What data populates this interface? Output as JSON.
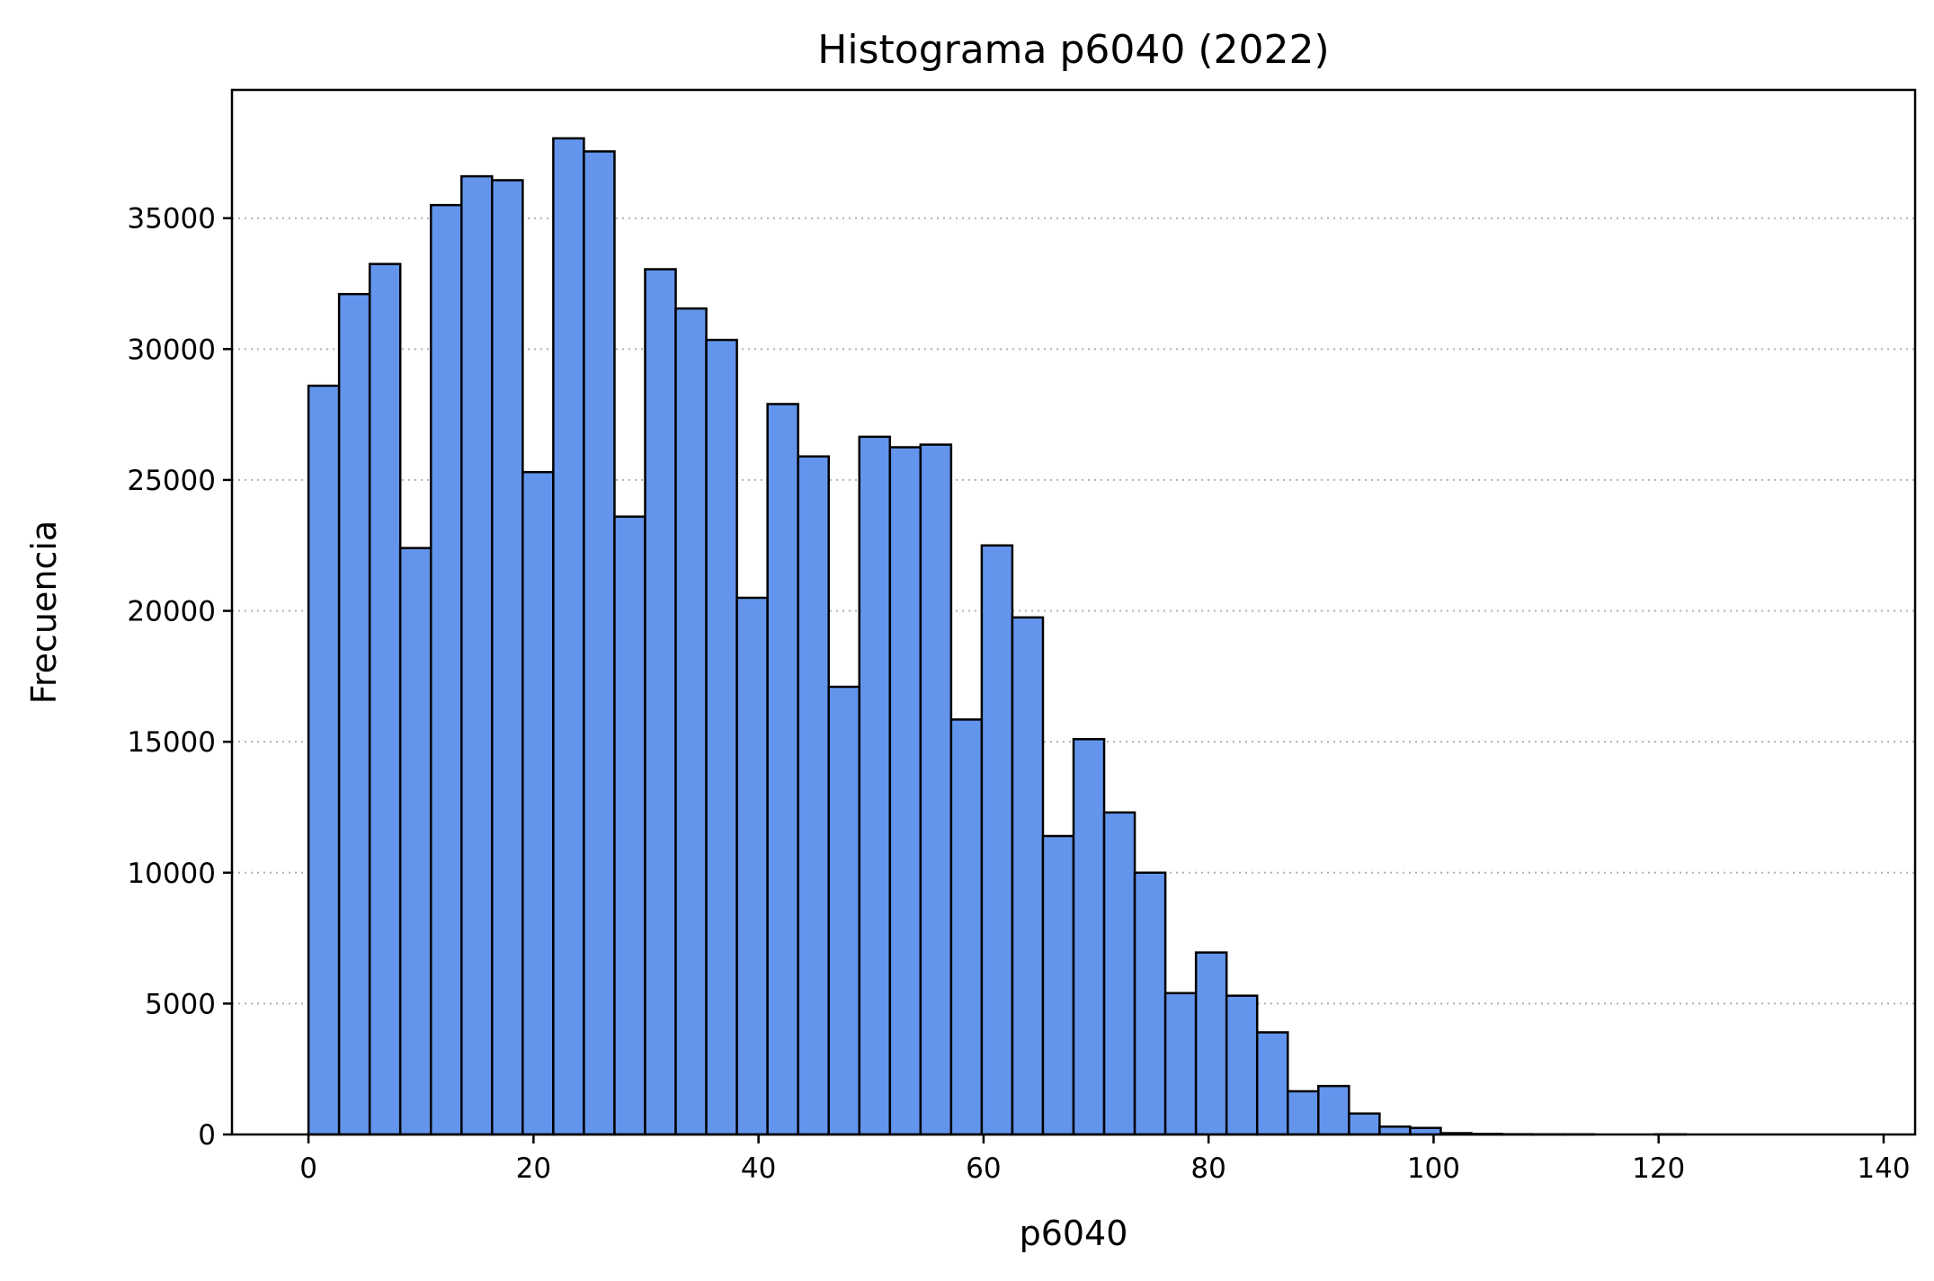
{
  "chart_data": {
    "type": "bar",
    "subtype": "histogram",
    "title": "Histograma p6040 (2022)",
    "xlabel": "p6040",
    "ylabel": "Frecuencia",
    "xlim": [
      -6.8,
      142.8
    ],
    "ylim": [
      0,
      39900
    ],
    "xticks": [
      0,
      20,
      40,
      60,
      80,
      100,
      120,
      140
    ],
    "yticks": [
      0,
      5000,
      10000,
      15000,
      20000,
      25000,
      30000,
      35000
    ],
    "grid": {
      "axis": "y",
      "style": "dotted"
    },
    "bar_color": "#6495ED",
    "edge_color": "#000000",
    "bins": {
      "start": 0,
      "width": 2.72,
      "counts": [
        28600,
        32100,
        33250,
        22400,
        35500,
        36600,
        36450,
        25300,
        38050,
        37550,
        23600,
        33050,
        31550,
        30350,
        20500,
        27900,
        25900,
        17100,
        26650,
        26250,
        26350,
        15850,
        22500,
        19750,
        11400,
        15100,
        12300,
        10000,
        5400,
        6950,
        5300,
        3900,
        1650,
        1850,
        800,
        300,
        250,
        50,
        20,
        10,
        5,
        5,
        0,
        0,
        5,
        0,
        0,
        0,
        0,
        0
      ]
    }
  }
}
